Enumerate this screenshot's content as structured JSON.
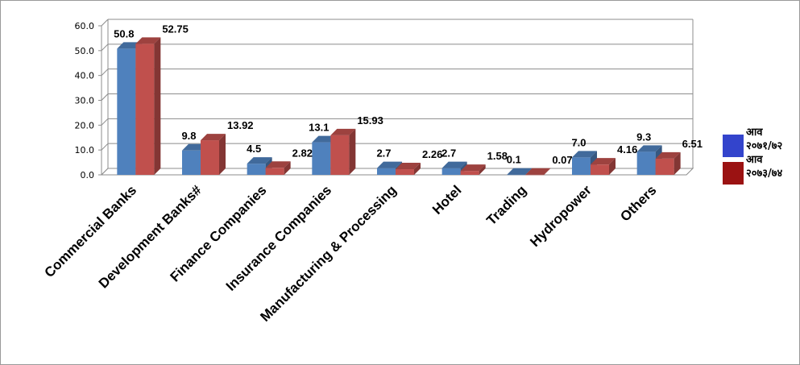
{
  "chart_data": {
    "type": "bar",
    "title": "",
    "xlabel": "",
    "ylabel": "",
    "ylim": [
      0,
      60
    ],
    "yticks": [
      "0.0",
      "10.0",
      "20.0",
      "30.0",
      "40.0",
      "50.0",
      "60.0"
    ],
    "grid": true,
    "legend_position": "right",
    "categories": [
      "Commercial Banks",
      "Development Banks#",
      "Finance Companies",
      "Insurance Companies",
      "Manufacturing & Processing",
      "Hotel",
      "Trading",
      "Hydropower",
      "Others"
    ],
    "series": [
      {
        "name": "आव २०७१/७२",
        "color": "#4f81bd",
        "values": [
          50.8,
          9.8,
          4.5,
          13.1,
          2.7,
          2.7,
          0.1,
          7.0,
          9.3
        ],
        "labels": [
          "50.8",
          "9.8",
          "4.5",
          "13.1",
          "2.7",
          "2.7",
          "0.1",
          "7.0",
          "9.3"
        ]
      },
      {
        "name": "आव २०७३/७४",
        "color": "#c0504d",
        "values": [
          52.75,
          13.92,
          2.82,
          15.93,
          2.26,
          1.58,
          0.07,
          4.16,
          6.51
        ],
        "labels": [
          "52.75",
          "13.92",
          "2.82",
          "15.93",
          "2.26",
          "1.58",
          "0.07",
          "4.16",
          "6.51"
        ]
      }
    ],
    "legend": [
      {
        "line1": "आव",
        "line2": "२०७१/७२",
        "color": "#3344cc"
      },
      {
        "line1": "आव",
        "line2": "२०७३/७४",
        "color": "#9b1212"
      }
    ]
  }
}
